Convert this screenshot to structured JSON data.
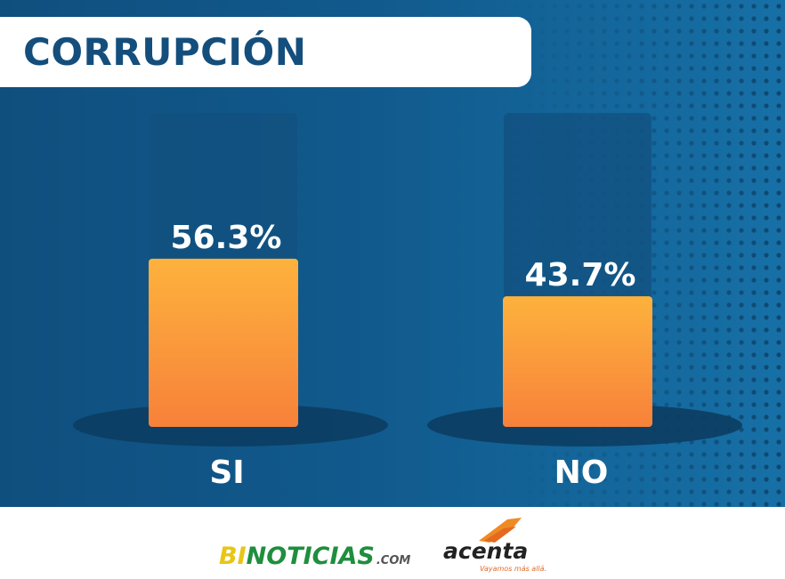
{
  "title": "CORRUPCIÓN",
  "colors": {
    "background_dark": "#0f4f7e",
    "background_light": "#1670a6",
    "bar_top": "#fdb23d",
    "bar_bottom": "#f7813a",
    "bar_track": "#12507f",
    "title_text": "#144e7c"
  },
  "chart_data": {
    "type": "bar",
    "categories": [
      "SI",
      "NO"
    ],
    "values": [
      56.3,
      43.7
    ],
    "value_labels": [
      "56.3%",
      "43.7%"
    ],
    "ylim": [
      0,
      100
    ],
    "grid": false,
    "legend": "none"
  },
  "footer": {
    "logo_bi_part1": "BI",
    "logo_bi_part2": "NOTICIAS",
    "logo_bi_suffix": ".COM",
    "logo_acenta": "acenta",
    "logo_acenta_tagline": "Vayamos más allá."
  }
}
